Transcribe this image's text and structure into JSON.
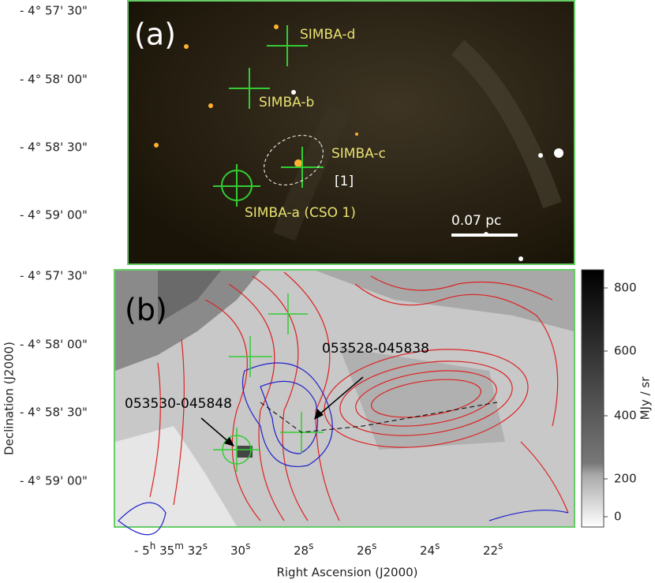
{
  "panel_a": {
    "label": "(a)",
    "dec_ticks": [
      "- 4°  57' 30\"",
      "- 4°  58' 00\"",
      "- 4°  58' 30\"",
      "- 4°  59' 00\""
    ],
    "sources": [
      "SIMBA-d",
      "SIMBA-b",
      "SIMBA-c",
      "[1]",
      "SIMBA-a (CSO 1)"
    ],
    "scale_bar": "0.07 pc"
  },
  "panel_b": {
    "label": "(b)",
    "dec_ticks": [
      "- 4°  57' 30\"",
      "- 4°  58' 00\"",
      "- 4°  58' 30\"",
      "- 4°  59' 00\""
    ],
    "annotations": [
      "053528-045838",
      "053530-045848"
    ],
    "ra_ticks": [
      [
        "- 5",
        "h",
        " 35",
        "m",
        " 32",
        "s"
      ],
      [
        "30",
        "s"
      ],
      [
        "28",
        "s"
      ],
      [
        "26",
        "s"
      ],
      [
        "24",
        "s"
      ],
      [
        "22",
        "s"
      ]
    ],
    "xlabel": "Right Ascension (J2000)",
    "ylabel": "Declination (J2000)",
    "colorbar": {
      "ticks": [
        800,
        600,
        400,
        200,
        0
      ],
      "label": "MJy / sr"
    }
  }
}
